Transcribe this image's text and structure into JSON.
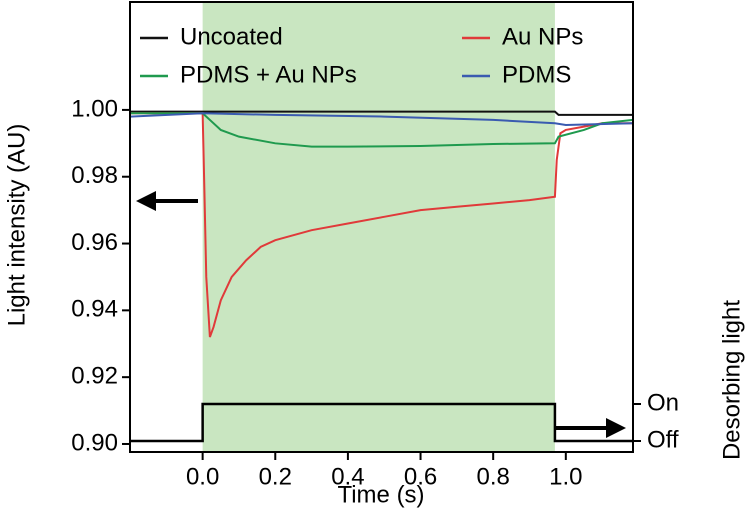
{
  "chart_data": {
    "type": "line",
    "xlabel": "Time (s)",
    "ylabel": "Light intensity (AU)",
    "y2label": "Desorbing light",
    "xlim": [
      -0.2,
      1.185
    ],
    "ylim": [
      0.8976,
      1.0323
    ],
    "y2lim": [
      -0.297,
      11.865
    ],
    "xticks": [
      {
        "value": 0,
        "label": "0.0"
      },
      {
        "value": 0.2,
        "label": "0.2"
      },
      {
        "value": 0.4,
        "label": "0.4"
      },
      {
        "value": 0.6,
        "label": "0.6"
      },
      {
        "value": 0.8,
        "label": "0.8"
      },
      {
        "value": 1,
        "label": "1.0"
      }
    ],
    "yticks": [
      {
        "value": 0.9,
        "label": "0.90"
      },
      {
        "value": 0.92,
        "label": "0.92"
      },
      {
        "value": 0.94,
        "label": "0.94"
      },
      {
        "value": 0.96,
        "label": "0.96"
      },
      {
        "value": 0.98,
        "label": "0.98"
      },
      {
        "value": 1,
        "label": "1.00"
      }
    ],
    "y2ticks": [
      {
        "value": 0,
        "label": "Off"
      },
      {
        "value": 1,
        "label": "On"
      }
    ],
    "legend": "upper center",
    "shaded_region": {
      "x": [
        0,
        0.97
      ],
      "color": "#c9e6c1"
    },
    "series": [
      {
        "name": "Uncoated",
        "color": "#111111",
        "x": [
          -0.2,
          0.97,
          0.98,
          1.185
        ],
        "values": [
          0.9995,
          0.9995,
          0.9985,
          0.9985
        ]
      },
      {
        "name": "Au NPs",
        "color": "#e03a3a",
        "x": [
          -0.2,
          -0.1,
          0,
          0.005,
          0.01,
          0.02,
          0.03,
          0.05,
          0.08,
          0.12,
          0.16,
          0.2,
          0.3,
          0.4,
          0.5,
          0.6,
          0.7,
          0.8,
          0.9,
          0.97,
          0.975,
          0.985,
          1.0,
          1.05,
          1.1,
          1.185
        ],
        "values": [
          0.999,
          0.999,
          0.999,
          0.975,
          0.95,
          0.932,
          0.935,
          0.943,
          0.95,
          0.955,
          0.959,
          0.961,
          0.964,
          0.966,
          0.968,
          0.97,
          0.971,
          0.972,
          0.973,
          0.974,
          0.985,
          0.993,
          0.994,
          0.995,
          0.996,
          0.996
        ]
      },
      {
        "name": "PDMS + Au NPs",
        "color": "#1f9a4e",
        "x": [
          -0.2,
          0,
          0.02,
          0.05,
          0.1,
          0.2,
          0.3,
          0.4,
          0.6,
          0.8,
          0.97,
          0.98,
          1.05,
          1.1,
          1.185
        ],
        "values": [
          0.999,
          0.999,
          0.997,
          0.994,
          0.992,
          0.99,
          0.989,
          0.989,
          0.9892,
          0.9898,
          0.99,
          0.992,
          0.994,
          0.996,
          0.997
        ]
      },
      {
        "name": "PDMS",
        "color": "#3a5bb0",
        "x": [
          -0.2,
          0,
          0.2,
          0.5,
          0.8,
          0.97,
          1.0,
          1.185
        ],
        "values": [
          0.998,
          0.999,
          0.9985,
          0.998,
          0.997,
          0.996,
          0.9955,
          0.996
        ]
      },
      {
        "color": "#000000",
        "axis": "y2",
        "x": [
          -0.2,
          0,
          0,
          0.97,
          0.97,
          1.185
        ],
        "values": [
          0,
          0,
          1,
          1,
          0,
          0
        ]
      }
    ]
  }
}
